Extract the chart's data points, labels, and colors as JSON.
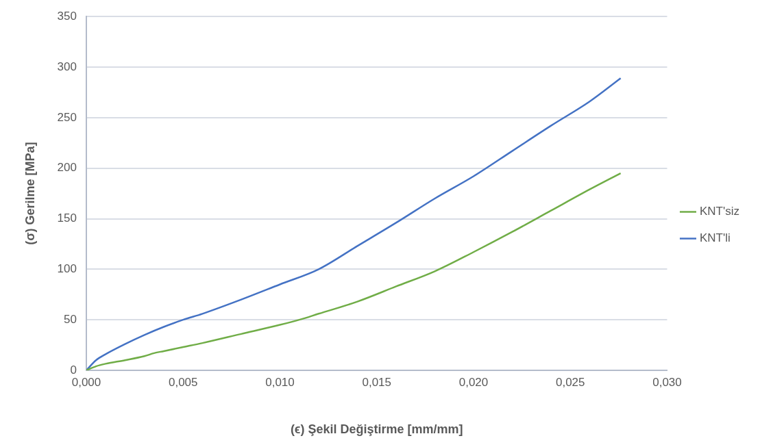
{
  "chart_data": {
    "type": "line",
    "xlabel": "(ϵ) Şekil Değiştirme [mm/mm]",
    "ylabel": "(σ) Gerilme [MPa]",
    "xlim": [
      0,
      0.03
    ],
    "xticks": [
      {
        "value": 0,
        "label": "0,000"
      },
      {
        "value": 0.005,
        "label": "0,005"
      },
      {
        "value": 0.01,
        "label": "0,010"
      },
      {
        "value": 0.015,
        "label": "0,015"
      },
      {
        "value": 0.02,
        "label": "0,020"
      },
      {
        "value": 0.025,
        "label": "0,025"
      },
      {
        "value": 0.03,
        "label": "0,030"
      }
    ],
    "ylim": [
      0,
      350
    ],
    "yticks": [
      0,
      50,
      100,
      150,
      200,
      250,
      300,
      350
    ],
    "grid": "y",
    "legend": "right",
    "marker": "none",
    "line_style": "solid",
    "series": [
      {
        "name": "KNT'siz",
        "color": "#70ad47",
        "x": [
          0,
          0.0005,
          0.001,
          0.002,
          0.003,
          0.0035,
          0.004,
          0.005,
          0.006,
          0.008,
          0.01,
          0.011,
          0.012,
          0.014,
          0.016,
          0.018,
          0.02,
          0.022,
          0.024,
          0.026,
          0.0276
        ],
        "values": [
          0,
          4,
          6.5,
          10,
          14,
          17,
          19,
          23,
          27,
          36,
          45,
          50,
          56,
          68,
          83,
          98,
          117,
          137,
          158,
          179,
          195
        ]
      },
      {
        "name": "KNT'li",
        "color": "#4472c4",
        "x": [
          0,
          0.0005,
          0.001,
          0.002,
          0.003,
          0.004,
          0.005,
          0.006,
          0.008,
          0.01,
          0.012,
          0.014,
          0.016,
          0.018,
          0.02,
          0.022,
          0.024,
          0.026,
          0.0276
        ],
        "values": [
          0,
          10,
          16,
          26,
          35,
          43,
          50,
          56,
          70,
          85,
          100,
          123,
          146,
          170,
          192,
          217,
          242,
          266,
          289
        ]
      }
    ]
  }
}
